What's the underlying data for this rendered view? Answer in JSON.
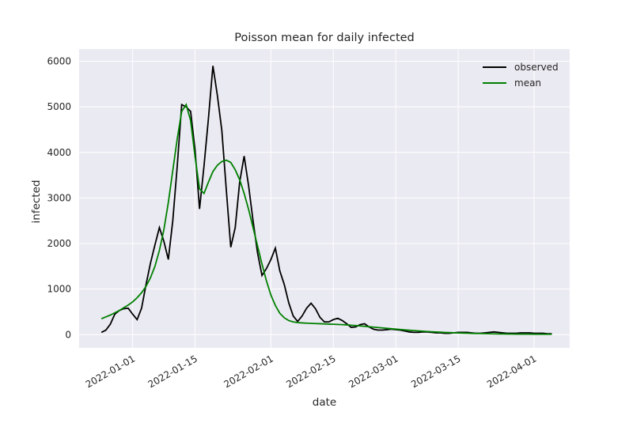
{
  "chart_data": {
    "type": "line",
    "title": "Poisson mean for daily infected",
    "xlabel": "date",
    "ylabel": "infected",
    "x": [
      "2021-12-25",
      "2021-12-26",
      "2021-12-27",
      "2021-12-28",
      "2021-12-29",
      "2021-12-30",
      "2021-12-31",
      "2022-01-01",
      "2022-01-02",
      "2022-01-03",
      "2022-01-04",
      "2022-01-05",
      "2022-01-06",
      "2022-01-07",
      "2022-01-08",
      "2022-01-09",
      "2022-01-10",
      "2022-01-11",
      "2022-01-12",
      "2022-01-13",
      "2022-01-14",
      "2022-01-15",
      "2022-01-16",
      "2022-01-17",
      "2022-01-18",
      "2022-01-19",
      "2022-01-20",
      "2022-01-21",
      "2022-01-22",
      "2022-01-23",
      "2022-01-24",
      "2022-01-25",
      "2022-01-26",
      "2022-01-27",
      "2022-01-28",
      "2022-01-29",
      "2022-01-30",
      "2022-01-31",
      "2022-02-01",
      "2022-02-02",
      "2022-02-03",
      "2022-02-04",
      "2022-02-05",
      "2022-02-06",
      "2022-02-07",
      "2022-02-08",
      "2022-02-09",
      "2022-02-10",
      "2022-02-11",
      "2022-02-12",
      "2022-02-13",
      "2022-02-14",
      "2022-02-15",
      "2022-02-16",
      "2022-02-17",
      "2022-02-18",
      "2022-02-19",
      "2022-02-20",
      "2022-02-21",
      "2022-02-22",
      "2022-02-23",
      "2022-02-24",
      "2022-02-25",
      "2022-02-26",
      "2022-02-27",
      "2022-02-28",
      "2022-03-01",
      "2022-03-02",
      "2022-03-03",
      "2022-03-04",
      "2022-03-05",
      "2022-03-06",
      "2022-03-07",
      "2022-03-08",
      "2022-03-09",
      "2022-03-10",
      "2022-03-11",
      "2022-03-12",
      "2022-03-13",
      "2022-03-14",
      "2022-03-15",
      "2022-03-16",
      "2022-03-17",
      "2022-03-18",
      "2022-03-19",
      "2022-03-20",
      "2022-03-21",
      "2022-03-22",
      "2022-03-23",
      "2022-03-24",
      "2022-03-25",
      "2022-03-26",
      "2022-03-27",
      "2022-03-28",
      "2022-03-29",
      "2022-03-30",
      "2022-03-31",
      "2022-04-01",
      "2022-04-02",
      "2022-04-03",
      "2022-04-04",
      "2022-04-05"
    ],
    "series": [
      {
        "name": "observed",
        "color": "#000000",
        "values": [
          50,
          100,
          230,
          450,
          530,
          570,
          580,
          450,
          330,
          580,
          1100,
          1570,
          1970,
          2350,
          2050,
          1650,
          2500,
          3700,
          5050,
          5000,
          4900,
          4050,
          2760,
          3700,
          4750,
          5900,
          5250,
          4480,
          3180,
          1920,
          2350,
          3350,
          3920,
          3270,
          2500,
          1800,
          1300,
          1450,
          1650,
          1900,
          1400,
          1100,
          700,
          410,
          290,
          410,
          580,
          690,
          570,
          380,
          280,
          280,
          330,
          360,
          310,
          240,
          160,
          170,
          220,
          240,
          170,
          120,
          100,
          100,
          110,
          120,
          110,
          100,
          80,
          60,
          50,
          50,
          60,
          60,
          50,
          40,
          40,
          30,
          30,
          40,
          50,
          50,
          50,
          40,
          30,
          30,
          40,
          50,
          60,
          50,
          40,
          30,
          30,
          30,
          40,
          40,
          40,
          30,
          30,
          30,
          20,
          20
        ]
      },
      {
        "name": "mean",
        "color": "#008000",
        "values": [
          350,
          390,
          430,
          480,
          530,
          590,
          650,
          720,
          810,
          920,
          1060,
          1250,
          1500,
          1850,
          2300,
          2900,
          3600,
          4300,
          4900,
          5050,
          4700,
          3900,
          3200,
          3100,
          3350,
          3580,
          3720,
          3800,
          3830,
          3780,
          3620,
          3400,
          3100,
          2750,
          2350,
          1950,
          1550,
          1180,
          870,
          640,
          470,
          370,
          310,
          280,
          265,
          258,
          252,
          248,
          244,
          240,
          236,
          232,
          228,
          224,
          220,
          214,
          207,
          200,
          192,
          184,
          175,
          166,
          157,
          148,
          139,
          130,
          121,
          113,
          105,
          97,
          90,
          83,
          76,
          70,
          64,
          59,
          54,
          49,
          45,
          41,
          37,
          34,
          31,
          28,
          26,
          24,
          22,
          20,
          18,
          17,
          16,
          15,
          14,
          13,
          12,
          11,
          11,
          10,
          10,
          9,
          9,
          9
        ]
      }
    ],
    "xlim": [
      "2021-12-20",
      "2022-04-09"
    ],
    "xticks": [
      "2022-01-01",
      "2022-01-15",
      "2022-02-01",
      "2022-02-15",
      "2022-03-01",
      "2022-03-15",
      "2022-04-01"
    ],
    "ylim": [
      -290,
      6270
    ],
    "yticks": [
      0,
      1000,
      2000,
      3000,
      4000,
      5000,
      6000
    ],
    "grid": true,
    "legend": "upper right"
  }
}
